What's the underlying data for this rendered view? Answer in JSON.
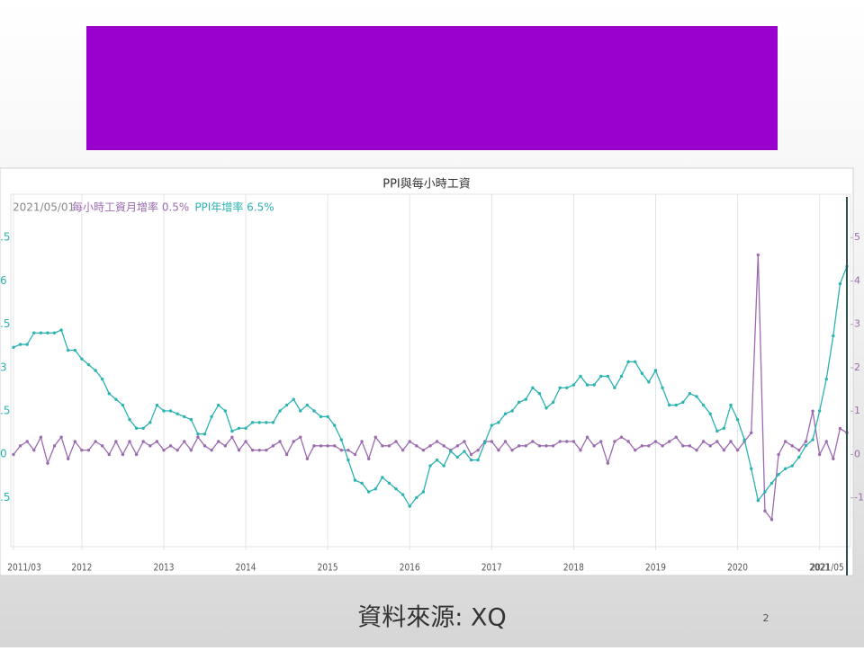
{
  "footer": {
    "source": "資料來源: XQ",
    "page_number": "2"
  },
  "chart_data": {
    "type": "line",
    "title": "PPI與每小時工資",
    "legend_date": "2021/05/01",
    "grid": "x",
    "x": [
      "2011/03",
      "2011/04",
      "2011/05",
      "2011/06",
      "2011/07",
      "2011/08",
      "2011/09",
      "2011/10",
      "2011/11",
      "2011/12",
      "2012/01",
      "2012/02",
      "2012/03",
      "2012/04",
      "2012/05",
      "2012/06",
      "2012/07",
      "2012/08",
      "2012/09",
      "2012/10",
      "2012/11",
      "2012/12",
      "2013/01",
      "2013/02",
      "2013/03",
      "2013/04",
      "2013/05",
      "2013/06",
      "2013/07",
      "2013/08",
      "2013/09",
      "2013/10",
      "2013/11",
      "2013/12",
      "2014/01",
      "2014/02",
      "2014/03",
      "2014/04",
      "2014/05",
      "2014/06",
      "2014/07",
      "2014/08",
      "2014/09",
      "2014/10",
      "2014/11",
      "2014/12",
      "2015/01",
      "2015/02",
      "2015/03",
      "2015/04",
      "2015/05",
      "2015/06",
      "2015/07",
      "2015/08",
      "2015/09",
      "2015/10",
      "2015/11",
      "2015/12",
      "2016/01",
      "2016/02",
      "2016/03",
      "2016/04",
      "2016/05",
      "2016/06",
      "2016/07",
      "2016/08",
      "2016/09",
      "2016/10",
      "2016/11",
      "2016/12",
      "2017/01",
      "2017/02",
      "2017/03",
      "2017/04",
      "2017/05",
      "2017/06",
      "2017/07",
      "2017/08",
      "2017/09",
      "2017/10",
      "2017/11",
      "2017/12",
      "2018/01",
      "2018/02",
      "2018/03",
      "2018/04",
      "2018/05",
      "2018/06",
      "2018/07",
      "2018/08",
      "2018/09",
      "2018/10",
      "2018/11",
      "2018/12",
      "2019/01",
      "2019/02",
      "2019/03",
      "2019/04",
      "2019/05",
      "2019/06",
      "2019/07",
      "2019/08",
      "2019/09",
      "2019/10",
      "2019/11",
      "2019/12",
      "2020/01",
      "2020/02",
      "2020/03",
      "2020/04",
      "2020/05",
      "2020/06",
      "2020/07",
      "2020/08",
      "2020/09",
      "2020/10",
      "2020/11",
      "2020/12",
      "2021/01",
      "2021/02",
      "2021/03",
      "2021/04",
      "2021/05"
    ],
    "xticks": [
      "2011/03",
      {
        "value": "2012/01",
        "label": "2012"
      },
      {
        "value": "2013/01",
        "label": "2013"
      },
      {
        "value": "2014/01",
        "label": "2014"
      },
      {
        "value": "2015/01",
        "label": "2015"
      },
      {
        "value": "2016/01",
        "label": "2016"
      },
      {
        "value": "2017/01",
        "label": "2017"
      },
      {
        "value": "2018/01",
        "label": "2018"
      },
      {
        "value": "2019/01",
        "label": "2019"
      },
      {
        "value": "2020/01",
        "label": "2020"
      },
      {
        "value": "2021/01",
        "label": "2021"
      },
      "2021/05"
    ],
    "ylim": [
      -3.2,
      9.0
    ],
    "yticks": [
      {
        "value": 7.5,
        "label": ".5"
      },
      6,
      {
        "value": 4.5,
        "label": ".5"
      },
      3,
      {
        "value": 1.5,
        "label": ".5"
      },
      0,
      {
        "value": -1.5,
        "label": ".5"
      }
    ],
    "y2lim": [
      -2.125,
      6.0
    ],
    "y2ticks": [
      5,
      4,
      3,
      2,
      1,
      0,
      -1
    ],
    "series": [
      {
        "name": "每小時工資月增率 0.5%",
        "color": "#9b6bb0",
        "axis": "y2",
        "values": [
          0.0,
          0.2,
          0.3,
          0.1,
          0.4,
          -0.2,
          0.2,
          0.4,
          -0.1,
          0.3,
          0.1,
          0.1,
          0.3,
          0.2,
          0.0,
          0.3,
          0.0,
          0.3,
          0.0,
          0.3,
          0.2,
          0.3,
          0.1,
          0.2,
          0.1,
          0.3,
          0.1,
          0.4,
          0.2,
          0.1,
          0.3,
          0.2,
          0.4,
          0.1,
          0.3,
          0.1,
          0.1,
          0.1,
          0.2,
          0.3,
          0.0,
          0.3,
          0.4,
          -0.1,
          0.2,
          0.2,
          0.2,
          0.2,
          0.1,
          0.1,
          0.0,
          0.3,
          -0.1,
          0.4,
          0.2,
          0.2,
          0.3,
          0.1,
          0.3,
          0.2,
          0.1,
          0.2,
          0.3,
          0.2,
          0.1,
          0.2,
          0.3,
          0.0,
          0.1,
          0.3,
          0.3,
          0.1,
          0.3,
          0.1,
          0.2,
          0.2,
          0.3,
          0.2,
          0.2,
          0.2,
          0.3,
          0.3,
          0.3,
          0.1,
          0.4,
          0.2,
          0.3,
          -0.2,
          0.3,
          0.4,
          0.3,
          0.1,
          0.2,
          0.2,
          0.3,
          0.2,
          0.3,
          0.4,
          0.2,
          0.2,
          0.1,
          0.3,
          0.2,
          0.3,
          0.1,
          0.3,
          0.1,
          0.3,
          0.5,
          4.6,
          -1.3,
          -1.5,
          0.0,
          0.3,
          0.2,
          0.1,
          0.3,
          1.0,
          0.0,
          0.3,
          -0.1,
          0.6,
          0.5
        ]
      },
      {
        "name": "PPI年增率 6.5%",
        "color": "#2bb3b1",
        "values": [
          3.7,
          3.8,
          3.8,
          4.2,
          4.2,
          4.2,
          4.2,
          4.3,
          3.6,
          3.6,
          3.3,
          3.1,
          2.9,
          2.6,
          2.1,
          1.9,
          1.7,
          1.2,
          0.9,
          0.9,
          1.1,
          1.7,
          1.5,
          1.5,
          1.4,
          1.3,
          1.2,
          0.7,
          0.7,
          1.3,
          1.7,
          1.5,
          0.8,
          0.9,
          0.9,
          1.1,
          1.1,
          1.1,
          1.1,
          1.5,
          1.7,
          1.9,
          1.5,
          1.7,
          1.5,
          1.3,
          1.3,
          1.0,
          0.5,
          -0.2,
          -0.9,
          -1.0,
          -1.3,
          -1.2,
          -0.8,
          -1.0,
          -1.2,
          -1.4,
          -1.8,
          -1.5,
          -1.3,
          -0.4,
          -0.2,
          -0.4,
          0.1,
          -0.1,
          0.1,
          -0.2,
          -0.2,
          0.4,
          1.0,
          1.1,
          1.4,
          1.5,
          1.8,
          1.9,
          2.3,
          2.1,
          1.6,
          1.8,
          2.3,
          2.3,
          2.4,
          2.7,
          2.4,
          2.4,
          2.7,
          2.7,
          2.3,
          2.7,
          3.2,
          3.2,
          2.8,
          2.5,
          2.9,
          2.3,
          1.7,
          1.7,
          1.8,
          2.1,
          2.0,
          1.7,
          1.4,
          0.8,
          0.9,
          1.7,
          1.2,
          0.5,
          -0.5,
          -1.6,
          -1.3,
          -1.0,
          -0.7,
          -0.5,
          -0.4,
          -0.1,
          0.3,
          0.5,
          1.5,
          2.6,
          4.1,
          5.9,
          6.5
        ]
      }
    ]
  }
}
